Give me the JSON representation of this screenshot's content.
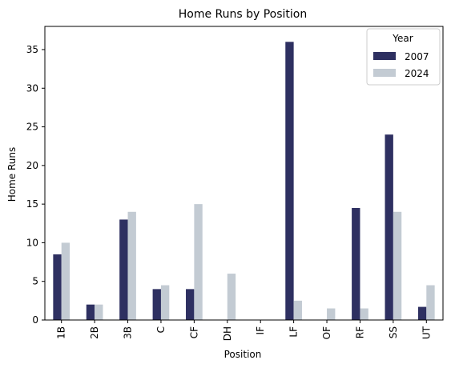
{
  "chart_data": {
    "type": "bar",
    "title": "Home Runs by Position",
    "xlabel": "Position",
    "ylabel": "Home Runs",
    "categories": [
      "1B",
      "2B",
      "3B",
      "C",
      "CF",
      "DH",
      "IF",
      "LF",
      "OF",
      "RF",
      "SS",
      "UT"
    ],
    "series": [
      {
        "name": "2007",
        "color": "#2e3061",
        "values": [
          8.5,
          2,
          13,
          4,
          4,
          0,
          0,
          36,
          0,
          14.5,
          24,
          1.7
        ]
      },
      {
        "name": "2024",
        "color": "#c3cbd3",
        "values": [
          10,
          2,
          14,
          4.5,
          15,
          6,
          0,
          2.5,
          1.5,
          1.5,
          14,
          4.5
        ]
      }
    ],
    "ylim": [
      0,
      38
    ],
    "yticks": [
      "0",
      "5",
      "10",
      "15",
      "20",
      "25",
      "30",
      "35"
    ],
    "grid": false,
    "legend": {
      "title": "Year",
      "placement": "top-right"
    }
  }
}
